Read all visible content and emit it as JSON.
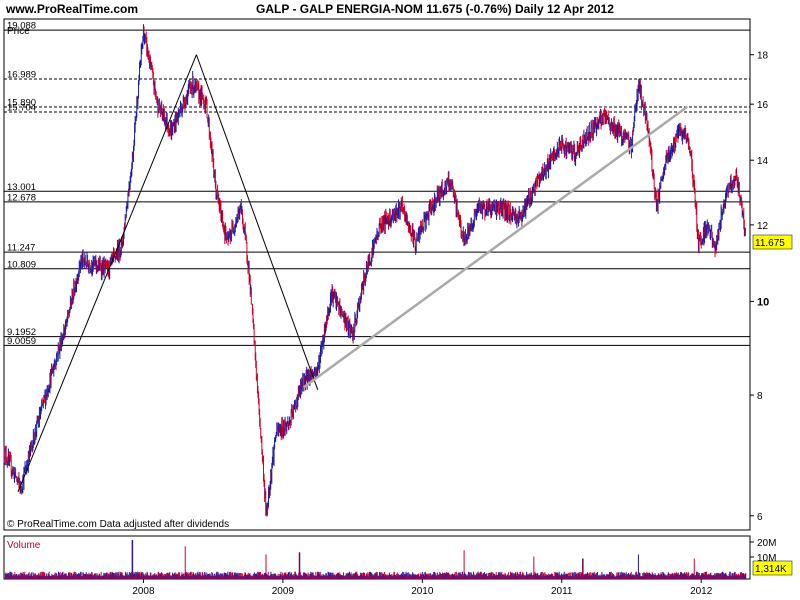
{
  "header": {
    "site": "www.ProRealTime.com",
    "title": "GALP - GALP ENERGIA-NOM    11.675 (-0.76%)    Daily  12 Apr 2012"
  },
  "price_label": "Price",
  "footer_note": "© ProRealTime.com  Data adjusted after dividends",
  "volume_label": "Volume",
  "colors": {
    "up": "#1a1aa0",
    "down": "#d0002a",
    "trend_gray": "#aaaaaa",
    "badge": "#ffff00"
  },
  "chart_data": [
    {
      "type": "candlestick",
      "title": "GALP - GALP ENERGIA-NOM",
      "last_price": "11.675",
      "change": "-0.76%",
      "period": "Daily",
      "date": "12 Apr 2012",
      "y_scale": "log",
      "ylim": [
        5.8,
        19.6
      ],
      "y_ticks": [
        6,
        8,
        10,
        12,
        14,
        16,
        18
      ],
      "y_bold_tick": "10",
      "x_ticks": [
        "2008",
        "2009",
        "2010",
        "2011",
        "2012"
      ],
      "xlim": [
        2007.0,
        2012.35
      ],
      "levels": [
        {
          "label": "19.088",
          "value": 19.088,
          "style": "solid"
        },
        {
          "label": "16.989",
          "value": 16.989,
          "style": "dashed"
        },
        {
          "label": "15.890",
          "value": 15.89,
          "style": "dashed"
        },
        {
          "label": "15.704",
          "value": 15.704,
          "style": "dashed"
        },
        {
          "label": "13.001",
          "value": 13.001,
          "style": "solid"
        },
        {
          "label": "12.678",
          "value": 12.678,
          "style": "solid"
        },
        {
          "label": "11.247",
          "value": 11.247,
          "style": "solid"
        },
        {
          "label": "10.809",
          "value": 10.809,
          "style": "solid"
        },
        {
          "label": "9.1952",
          "value": 9.1952,
          "style": "solid"
        },
        {
          "label": "9.0059",
          "value": 9.0059,
          "style": "solid"
        }
      ],
      "trendlines": [
        {
          "color": "black",
          "points": [
            [
              2007.1,
              6.35
            ],
            [
              2008.38,
              18.0
            ]
          ]
        },
        {
          "color": "black",
          "points": [
            [
              2008.38,
              18.0
            ],
            [
              2009.25,
              8.1
            ]
          ]
        },
        {
          "color": "gray",
          "points": [
            [
              2009.15,
              8.15
            ],
            [
              2011.9,
              15.9
            ]
          ]
        }
      ],
      "anchors": [
        [
          2007.0,
          7.0
        ],
        [
          2007.12,
          6.4
        ],
        [
          2007.3,
          8.0
        ],
        [
          2007.45,
          9.5
        ],
        [
          2007.55,
          11.0
        ],
        [
          2007.75,
          10.8
        ],
        [
          2007.85,
          11.5
        ],
        [
          2007.92,
          14.0
        ],
        [
          2008.0,
          19.0
        ],
        [
          2008.1,
          16.0
        ],
        [
          2008.2,
          15.0
        ],
        [
          2008.35,
          16.8
        ],
        [
          2008.45,
          16.0
        ],
        [
          2008.52,
          13.0
        ],
        [
          2008.6,
          11.5
        ],
        [
          2008.7,
          12.5
        ],
        [
          2008.75,
          11.0
        ],
        [
          2008.82,
          8.0
        ],
        [
          2008.88,
          6.0
        ],
        [
          2008.95,
          7.3
        ],
        [
          2009.05,
          7.5
        ],
        [
          2009.15,
          8.3
        ],
        [
          2009.25,
          8.5
        ],
        [
          2009.35,
          10.2
        ],
        [
          2009.5,
          9.2
        ],
        [
          2009.6,
          10.8
        ],
        [
          2009.7,
          12.0
        ],
        [
          2009.85,
          12.5
        ],
        [
          2009.95,
          11.5
        ],
        [
          2010.1,
          12.8
        ],
        [
          2010.2,
          13.3
        ],
        [
          2010.3,
          11.5
        ],
        [
          2010.4,
          12.5
        ],
        [
          2010.55,
          12.5
        ],
        [
          2010.7,
          12.2
        ],
        [
          2010.85,
          13.5
        ],
        [
          2011.0,
          14.5
        ],
        [
          2011.1,
          14.2
        ],
        [
          2011.2,
          15.0
        ],
        [
          2011.3,
          15.5
        ],
        [
          2011.4,
          15.0
        ],
        [
          2011.5,
          14.5
        ],
        [
          2011.55,
          16.8
        ],
        [
          2011.62,
          15.0
        ],
        [
          2011.68,
          12.5
        ],
        [
          2011.75,
          14.0
        ],
        [
          2011.85,
          15.0
        ],
        [
          2011.92,
          14.5
        ],
        [
          2011.98,
          11.5
        ],
        [
          2012.05,
          12.0
        ],
        [
          2012.1,
          11.3
        ],
        [
          2012.18,
          13.0
        ],
        [
          2012.25,
          13.5
        ],
        [
          2012.32,
          11.7
        ]
      ]
    },
    {
      "type": "bar",
      "title": "Volume",
      "y_ticks": [
        "20M",
        "10M"
      ],
      "last_value": "1,314K",
      "x_ticks": [
        "2008",
        "2009",
        "2010",
        "2011",
        "2012"
      ],
      "spikes": [
        [
          2007.92,
          0.95
        ],
        [
          2008.3,
          0.8
        ],
        [
          2008.88,
          0.6
        ],
        [
          2009.12,
          0.65
        ],
        [
          2010.3,
          0.7
        ],
        [
          2010.8,
          0.55
        ],
        [
          2011.15,
          0.5
        ],
        [
          2011.55,
          0.6
        ],
        [
          2011.95,
          0.5
        ]
      ]
    }
  ]
}
